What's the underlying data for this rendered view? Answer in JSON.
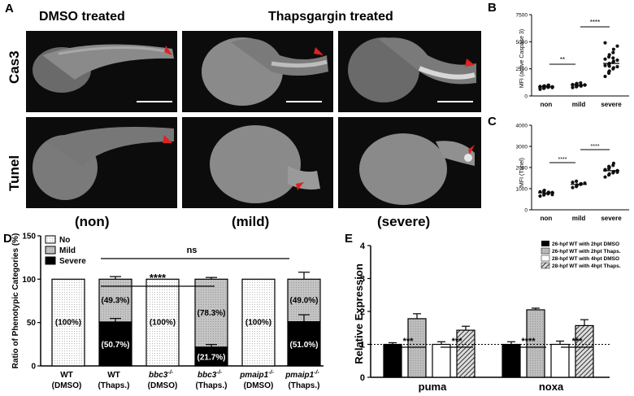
{
  "panelA": {
    "letter": "A",
    "col_heads": [
      "DMSO treated",
      "Thapsgargin treated"
    ],
    "row_labels": [
      "Cas3",
      "Tunel"
    ],
    "categories": [
      "(non)",
      "(mild)",
      "(severe)"
    ]
  },
  "panelB": {
    "letter": "B",
    "ylabel": "MFI (active Caspase 3)",
    "yticks": [
      "0",
      "2500",
      "5000",
      "7500"
    ],
    "xticks": [
      "non",
      "mild",
      "severe"
    ],
    "sig": [
      "**",
      "****"
    ]
  },
  "panelC": {
    "letter": "C",
    "ylabel": "MFI (Tunel)",
    "yticks": [
      "0",
      "1000",
      "2000",
      "3000",
      "4000"
    ],
    "xticks": [
      "non",
      "mild",
      "severe"
    ],
    "sig": [
      "****",
      "****"
    ]
  },
  "panelD": {
    "letter": "D",
    "ylabel": "Ratio of Phenotypic Categories (%)",
    "legend": [
      "No",
      "Mild",
      "Severe"
    ],
    "yticks": [
      "0",
      "50",
      "100",
      "150"
    ],
    "sig": [
      "****",
      "ns"
    ],
    "xticks": [
      {
        "gene": "WT",
        "sup": "",
        "cond": "(DMSO)"
      },
      {
        "gene": "WT",
        "sup": "",
        "cond": "(Thaps.)"
      },
      {
        "gene": "bbc3",
        "sup": "-/-",
        "cond": "(DMSO)"
      },
      {
        "gene": "bbc3",
        "sup": "-/-",
        "cond": "(Thaps.)"
      },
      {
        "gene": "pmaip1",
        "sup": "-/-",
        "cond": "(DMSO)"
      },
      {
        "gene": "pmaip1",
        "sup": "-/-",
        "cond": "(Thaps.)"
      }
    ],
    "labels_upper": [
      "(100%)",
      "(49.3%)",
      "(100%)",
      "(78.3%)",
      "(100%)",
      "(49.0%)"
    ],
    "labels_lower": [
      "",
      "(50.7%)",
      "",
      "(21.7%)",
      "",
      "(51.0%)"
    ]
  },
  "panelE": {
    "letter": "E",
    "ylabel": "Relative Expression",
    "yticks": [
      "0",
      "1",
      "2",
      "3",
      "4"
    ],
    "groups": [
      "puma",
      "noxa"
    ],
    "legend": [
      "26-hpf WT with 2hpt DMSO",
      "26-hpf WT with 2hpt Thaps.",
      "28-hpf WT with 4hpt DMSO",
      "28-hpf WT with 4hpt Thaps."
    ],
    "sig": [
      "***",
      "***",
      "****",
      "***"
    ]
  },
  "chart_data": [
    {
      "type": "scatter",
      "panel": "B",
      "title": "",
      "xlabel": "",
      "ylabel": "MFI (active Caspase 3)",
      "categories": [
        "non",
        "mild",
        "severe"
      ],
      "ylim": [
        0,
        7500
      ],
      "series": [
        {
          "name": "non",
          "mean": 850,
          "values": [
            620,
            700,
            760,
            800,
            830,
            850,
            870,
            900,
            930,
            960,
            1000,
            780,
            720,
            880,
            910,
            820
          ]
        },
        {
          "name": "mild",
          "mean": 1000,
          "values": [
            780,
            850,
            900,
            950,
            980,
            1000,
            1050,
            1100,
            1150,
            1200,
            920,
            1020
          ]
        },
        {
          "name": "severe",
          "mean": 3000,
          "values": [
            1800,
            2100,
            2300,
            2500,
            2600,
            2700,
            2800,
            2900,
            3000,
            3100,
            3200,
            3300,
            3400,
            3600,
            3800,
            4000,
            4300,
            4600,
            4900,
            2200,
            2750,
            3500
          ]
        }
      ]
    },
    {
      "type": "scatter",
      "panel": "C",
      "title": "",
      "xlabel": "",
      "ylabel": "MFI (Tunel)",
      "categories": [
        "non",
        "mild",
        "severe"
      ],
      "ylim": [
        0,
        4000
      ],
      "series": [
        {
          "name": "non",
          "mean": 800,
          "values": [
            650,
            700,
            740,
            780,
            800,
            820,
            850,
            880,
            920,
            760,
            830,
            720
          ]
        },
        {
          "name": "mild",
          "mean": 1200,
          "values": [
            1050,
            1100,
            1150,
            1200,
            1230,
            1260,
            1300,
            1350,
            1180,
            1220
          ]
        },
        {
          "name": "severe",
          "mean": 1850,
          "values": [
            1550,
            1650,
            1700,
            1750,
            1800,
            1850,
            1900,
            1950,
            2000,
            2100,
            2200,
            1780,
            1880,
            2050
          ]
        }
      ]
    },
    {
      "type": "bar",
      "panel": "D",
      "stacked": true,
      "categories": [
        "WT (DMSO)",
        "WT (Thaps.)",
        "bbc3-/- (DMSO)",
        "bbc3-/- (Thaps.)",
        "pmaip1-/- (DMSO)",
        "pmaip1-/- (Thaps.)"
      ],
      "ylim": [
        0,
        150
      ],
      "ylabel": "Ratio of Phenotypic Categories (%)",
      "series": [
        {
          "name": "No",
          "values": [
            100,
            0,
            100,
            0,
            100,
            0
          ]
        },
        {
          "name": "Mild",
          "values": [
            0,
            49.3,
            0,
            78.3,
            0,
            49.0
          ]
        },
        {
          "name": "Severe",
          "values": [
            0,
            50.7,
            0,
            21.7,
            0,
            51.0
          ]
        }
      ],
      "error_top": [
        0,
        3,
        0,
        2,
        0,
        8
      ],
      "error_severe": [
        0,
        4,
        0,
        3,
        0,
        8
      ]
    },
    {
      "type": "bar",
      "panel": "E",
      "categories": [
        "puma",
        "noxa"
      ],
      "ylim": [
        0,
        4
      ],
      "ylabel": "Relative Expression",
      "reference_line": 1,
      "series": [
        {
          "name": "26-hpf WT with 2hpt DMSO",
          "values": [
            1.0,
            1.0
          ],
          "errors": [
            0.05,
            0.08
          ]
        },
        {
          "name": "26-hpf WT with 2hpt Thaps.",
          "values": [
            1.78,
            2.05
          ],
          "errors": [
            0.15,
            0.05
          ]
        },
        {
          "name": "28-hpf WT with 4hpt DMSO",
          "values": [
            1.0,
            1.0
          ],
          "errors": [
            0.08,
            0.1
          ]
        },
        {
          "name": "28-hpf WT with 4hpt Thaps.",
          "values": [
            1.43,
            1.57
          ],
          "errors": [
            0.12,
            0.18
          ]
        }
      ]
    }
  ]
}
